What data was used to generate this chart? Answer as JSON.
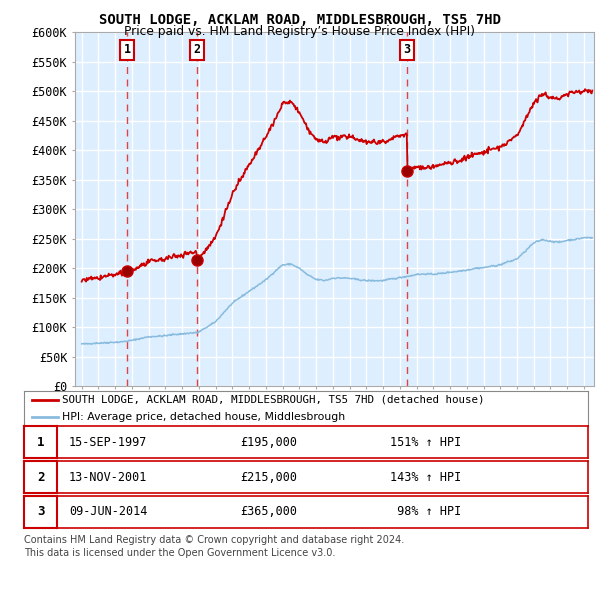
{
  "title": "SOUTH LODGE, ACKLAM ROAD, MIDDLESBROUGH, TS5 7HD",
  "subtitle": "Price paid vs. HM Land Registry’s House Price Index (HPI)",
  "ylim": [
    0,
    600000
  ],
  "xlim": [
    1994.6,
    2025.6
  ],
  "ytick_vals": [
    0,
    50000,
    100000,
    150000,
    200000,
    250000,
    300000,
    350000,
    400000,
    450000,
    500000,
    550000,
    600000
  ],
  "ytick_labels": [
    "£0",
    "£50K",
    "£100K",
    "£150K",
    "£200K",
    "£250K",
    "£300K",
    "£350K",
    "£400K",
    "£450K",
    "£500K",
    "£550K",
    "£600K"
  ],
  "xtick_vals": [
    1995,
    1996,
    1997,
    1998,
    1999,
    2000,
    2001,
    2002,
    2003,
    2004,
    2005,
    2006,
    2007,
    2008,
    2009,
    2010,
    2011,
    2012,
    2013,
    2014,
    2015,
    2016,
    2017,
    2018,
    2019,
    2020,
    2021,
    2022,
    2023,
    2024,
    2025
  ],
  "sale_years": [
    1997.71,
    2001.87,
    2014.44
  ],
  "sale_prices": [
    195000,
    215000,
    365000
  ],
  "sale_nums": [
    "1",
    "2",
    "3"
  ],
  "sale_dates_text": [
    "15-SEP-1997",
    "13-NOV-2001",
    "09-JUN-2014"
  ],
  "sale_prices_text": [
    "£195,000",
    "£215,000",
    "£365,000"
  ],
  "sale_hpi_text": [
    "151% ↑ HPI",
    "143% ↑ HPI",
    " 98% ↑ HPI"
  ],
  "red_color": "#cc0000",
  "blue_color": "#88bbdd",
  "vline_color": "#dd4444",
  "grid_color": "#cccccc",
  "bg_chart": "#ddeeff",
  "legend_red": "SOUTH LODGE, ACKLAM ROAD, MIDDLESBROUGH, TS5 7HD (detached house)",
  "legend_blue": "HPI: Average price, detached house, Middlesbrough",
  "footnote_line1": "Contains HM Land Registry data © Crown copyright and database right 2024.",
  "footnote_line2": "This data is licensed under the Open Government Licence v3.0.",
  "hpi_keypoints_x": [
    1995.0,
    1996.0,
    1997.0,
    1998.0,
    1999.0,
    2000.0,
    2001.0,
    2001.87,
    2002.0,
    2003.0,
    2004.0,
    2005.0,
    2006.0,
    2007.0,
    2007.5,
    2008.0,
    2008.5,
    2009.0,
    2009.5,
    2010.0,
    2011.0,
    2012.0,
    2013.0,
    2014.0,
    2014.44,
    2015.0,
    2016.0,
    2017.0,
    2018.0,
    2019.0,
    2020.0,
    2021.0,
    2021.5,
    2022.0,
    2022.5,
    2023.0,
    2023.5,
    2024.0,
    2024.5,
    2025.0
  ],
  "hpi_keypoints_y": [
    72000,
    74000,
    76000,
    79000,
    85000,
    87000,
    90000,
    92000,
    93000,
    110000,
    140000,
    160000,
    180000,
    205000,
    207000,
    200000,
    188000,
    180000,
    178000,
    182000,
    182000,
    178000,
    178000,
    182000,
    184000,
    188000,
    188000,
    192000,
    196000,
    200000,
    205000,
    215000,
    228000,
    242000,
    248000,
    245000,
    244000,
    248000,
    250000,
    252000
  ]
}
